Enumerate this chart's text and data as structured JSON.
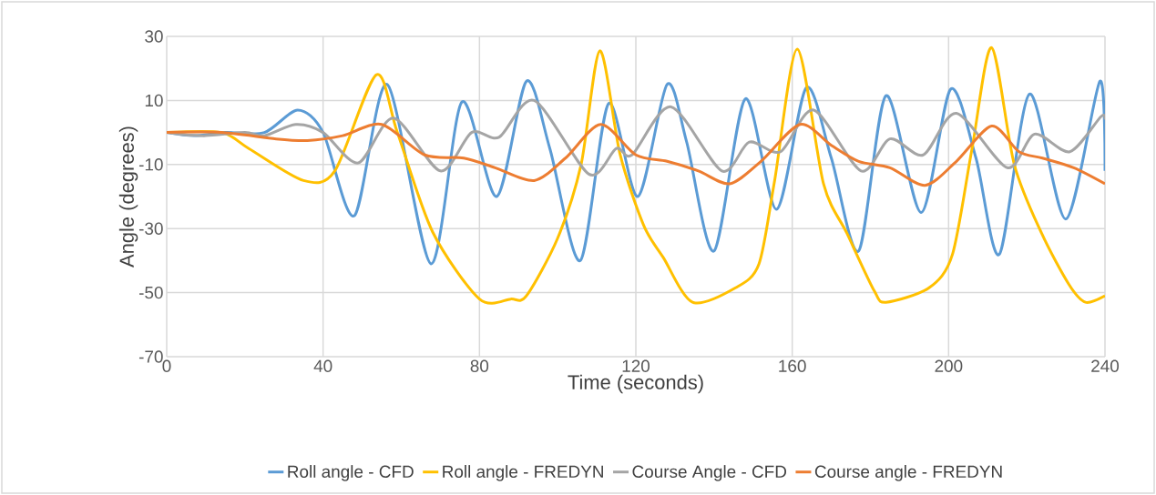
{
  "chart_data": {
    "type": "line",
    "xlabel": "Time (seconds)",
    "ylabel": "Angle (degrees)",
    "xlim": [
      0,
      240
    ],
    "xticks": [
      0,
      40,
      80,
      120,
      160,
      200,
      240
    ],
    "ylim": [
      -70,
      30
    ],
    "yticks": [
      -70,
      -50,
      -30,
      -10,
      10,
      30
    ],
    "grid": true,
    "legend": "bottom",
    "line_style": "solid",
    "marker": "none",
    "series": [
      {
        "name": "Roll angle - CFD",
        "color": "#5b9bd5",
        "x": [
          0,
          7,
          15,
          25,
          33.5,
          40,
          48,
          56.4,
          67.6,
          75.5,
          84.4,
          92,
          98,
          105.8,
          113,
          120.5,
          128,
          133,
          140,
          148,
          156,
          163.6,
          170,
          177,
          184,
          193,
          200.5,
          207,
          213,
          220.7,
          230,
          238.7,
          240
        ],
        "values": [
          0,
          -1,
          0,
          0,
          7,
          0,
          -26,
          15,
          -41,
          9.5,
          -20,
          16,
          -5,
          -40,
          9,
          -20,
          15,
          -3,
          -37,
          10.5,
          -24,
          14,
          -8,
          -37,
          11.5,
          -25,
          13.5,
          -8,
          -38,
          12,
          -27,
          16,
          -12
        ]
      },
      {
        "name": "Roll angle - FREDYN",
        "color": "#ffc000",
        "x": [
          0,
          14,
          21,
          35,
          43,
          53.6,
          59,
          68,
          80,
          88,
          92,
          100,
          106,
          110.8,
          116,
          122,
          127,
          134.5,
          145.5,
          151.5,
          155.5,
          161.3,
          168,
          174,
          181,
          184,
          195,
          201,
          206,
          211,
          216.8,
          223.8,
          230.8,
          235,
          240
        ],
        "values": [
          0,
          0,
          -5,
          -15,
          -12,
          18,
          0,
          -31,
          -52,
          -52,
          -51,
          -33,
          -10,
          25.5,
          -7,
          -29,
          -39,
          -53,
          -48.5,
          -41,
          -15,
          26,
          -16,
          -31.5,
          -49.5,
          -53,
          -48.5,
          -38,
          -5,
          26.5,
          -10,
          -31.5,
          -47.5,
          -53,
          -51
        ]
      },
      {
        "name": "Course Angle - CFD",
        "color": "#a5a5a5",
        "x": [
          0,
          3,
          10,
          20,
          25,
          33,
          40,
          49,
          58,
          70,
          78,
          85,
          94,
          108,
          115,
          119,
          129,
          142,
          149,
          157,
          165.5,
          177.6,
          185,
          193.5,
          202,
          215,
          222,
          231,
          239,
          240
        ],
        "values": [
          0,
          -0.5,
          -1,
          0,
          -1,
          2.5,
          0,
          -9.5,
          4.5,
          -12,
          0,
          -1.5,
          10,
          -13,
          -5,
          -7,
          8,
          -12,
          -3,
          -6,
          7,
          -12,
          -2,
          -7,
          6,
          -11,
          -0.5,
          -6,
          5,
          4
        ]
      },
      {
        "name": "Course angle - FREDYN",
        "color": "#ed7d31",
        "x": [
          0,
          14,
          28,
          36,
          45,
          55,
          66,
          76,
          84,
          94,
          102,
          111,
          120,
          128,
          136,
          144,
          152,
          162,
          170,
          177,
          185,
          194,
          202,
          211,
          218,
          224,
          232,
          240
        ],
        "values": [
          0,
          0,
          -2,
          -2.5,
          -1,
          2.5,
          -7,
          -8,
          -11,
          -15,
          -8,
          2.5,
          -7,
          -9,
          -12,
          -16,
          -9,
          2.5,
          -4,
          -9,
          -11,
          -16.5,
          -9,
          2,
          -6,
          -8,
          -11,
          -16
        ]
      }
    ]
  }
}
